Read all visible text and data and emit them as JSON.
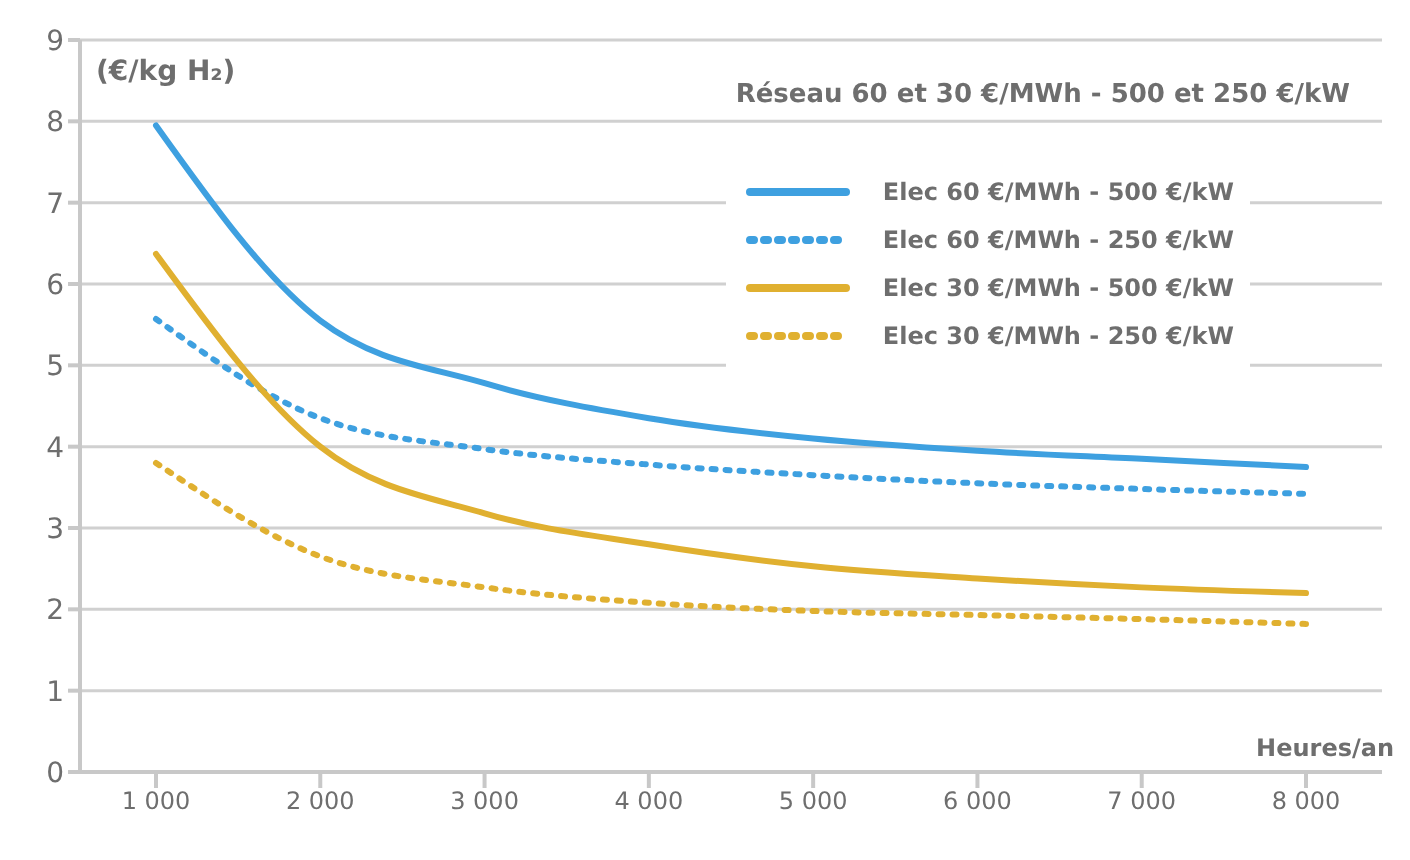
{
  "chart_data": {
    "type": "line",
    "title": "Réseau 60 et 30 €/MWh - 500 et 250 €/kW",
    "ylabel": "(€/kg H₂)",
    "xlabel": "Heures/an",
    "categories": [
      "1 000",
      "2 000",
      "3 000",
      "4 000",
      "5 000",
      "6 000",
      "7 000",
      "8 000"
    ],
    "series": [
      {
        "name": "Elec 60 €/MWh - 500 €/kW",
        "color": "#3ea0e0",
        "line_style": "solid",
        "values": [
          7.95,
          5.55,
          4.78,
          4.35,
          4.1,
          3.95,
          3.85,
          3.75
        ]
      },
      {
        "name": "Elec 60 €/MWh - 250 €/kW",
        "color": "#3ea0e0",
        "line_style": "dotted",
        "values": [
          5.57,
          4.35,
          3.97,
          3.78,
          3.65,
          3.55,
          3.48,
          3.42
        ]
      },
      {
        "name": "Elec 30 €/MWh - 500 €/kW",
        "color": "#e0b030",
        "line_style": "solid",
        "values": [
          6.37,
          4.0,
          3.18,
          2.8,
          2.53,
          2.38,
          2.27,
          2.2
        ]
      },
      {
        "name": "Elec 30 €/MWh - 250 €/kW",
        "color": "#e0b030",
        "line_style": "dotted",
        "values": [
          3.8,
          2.65,
          2.27,
          2.08,
          1.98,
          1.93,
          1.88,
          1.82
        ]
      }
    ],
    "ylim": [
      0,
      9
    ],
    "yticks": [
      0,
      1,
      2,
      3,
      4,
      5,
      6,
      7,
      8,
      9
    ],
    "grid": "y",
    "legend": "top right",
    "marker": "none"
  }
}
